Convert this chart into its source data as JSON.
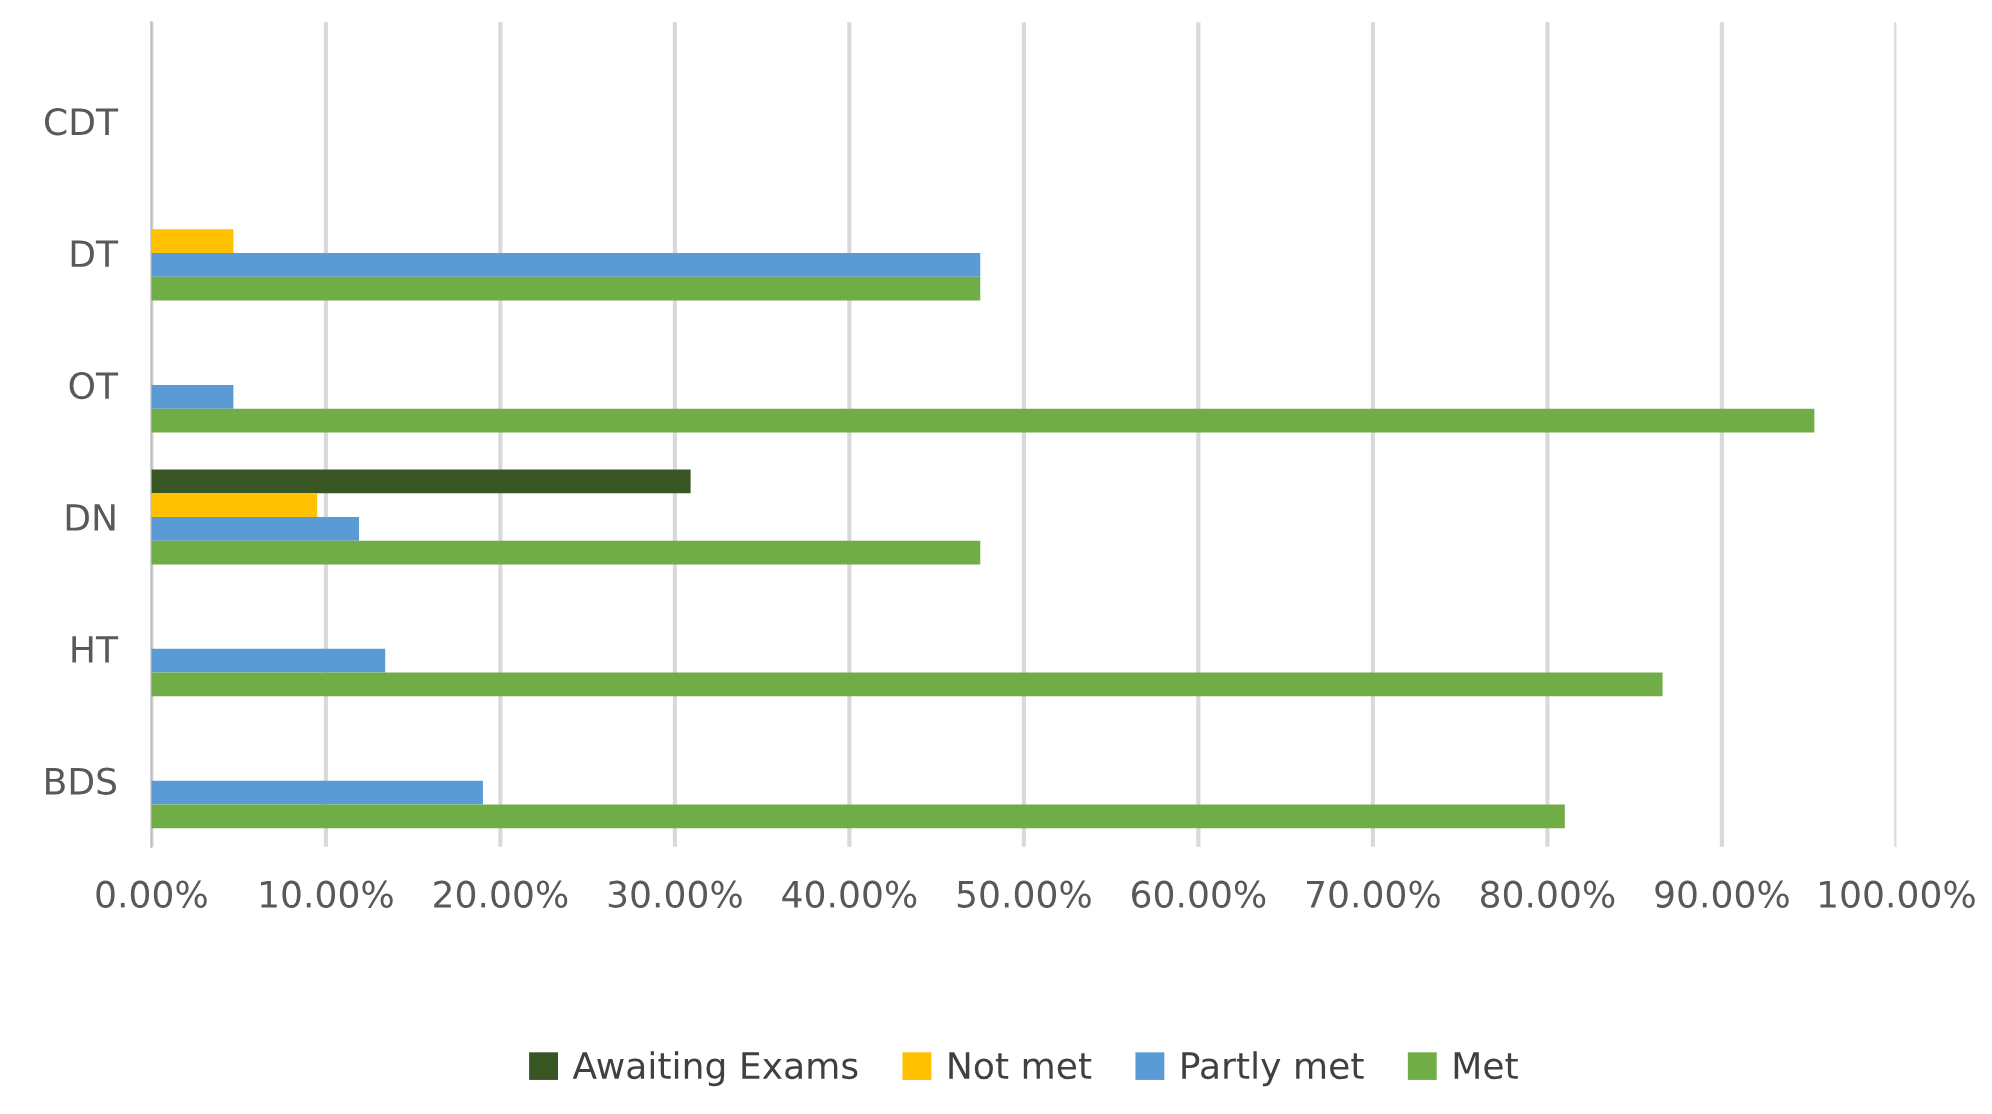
{
  "chart_data": {
    "type": "bar",
    "orientation": "horizontal",
    "categories": [
      "CDT",
      "DT",
      "OT",
      "DN",
      "HT",
      "BDS"
    ],
    "series": [
      {
        "name": "Awaiting Exams",
        "color": "#375623",
        "values": [
          null,
          null,
          null,
          30.9,
          null,
          null
        ]
      },
      {
        "name": "Not met",
        "color": "#ffc000",
        "values": [
          null,
          4.7,
          null,
          9.5,
          null,
          null
        ]
      },
      {
        "name": "Partly met",
        "color": "#5b9bd5",
        "values": [
          null,
          47.5,
          4.7,
          11.9,
          13.4,
          19.0
        ]
      },
      {
        "name": "Met",
        "color": "#70ad47",
        "values": [
          null,
          47.5,
          95.3,
          47.5,
          86.6,
          81.0
        ]
      }
    ],
    "xlim": [
      0,
      100
    ],
    "xticks": [
      {
        "value": 0,
        "label": "0.00%"
      },
      {
        "value": 10,
        "label": "10.00%"
      },
      {
        "value": 20,
        "label": "20.00%"
      },
      {
        "value": 30,
        "label": "30.00%"
      },
      {
        "value": 40,
        "label": "40.00%"
      },
      {
        "value": 50,
        "label": "50.00%"
      },
      {
        "value": 60,
        "label": "60.00%"
      },
      {
        "value": 70,
        "label": "70.00%"
      },
      {
        "value": 80,
        "label": "80.00%"
      },
      {
        "value": 90,
        "label": "90.00%"
      },
      {
        "value": 100,
        "label": "100.00%"
      }
    ],
    "grid": "x",
    "legend": "bottom"
  }
}
